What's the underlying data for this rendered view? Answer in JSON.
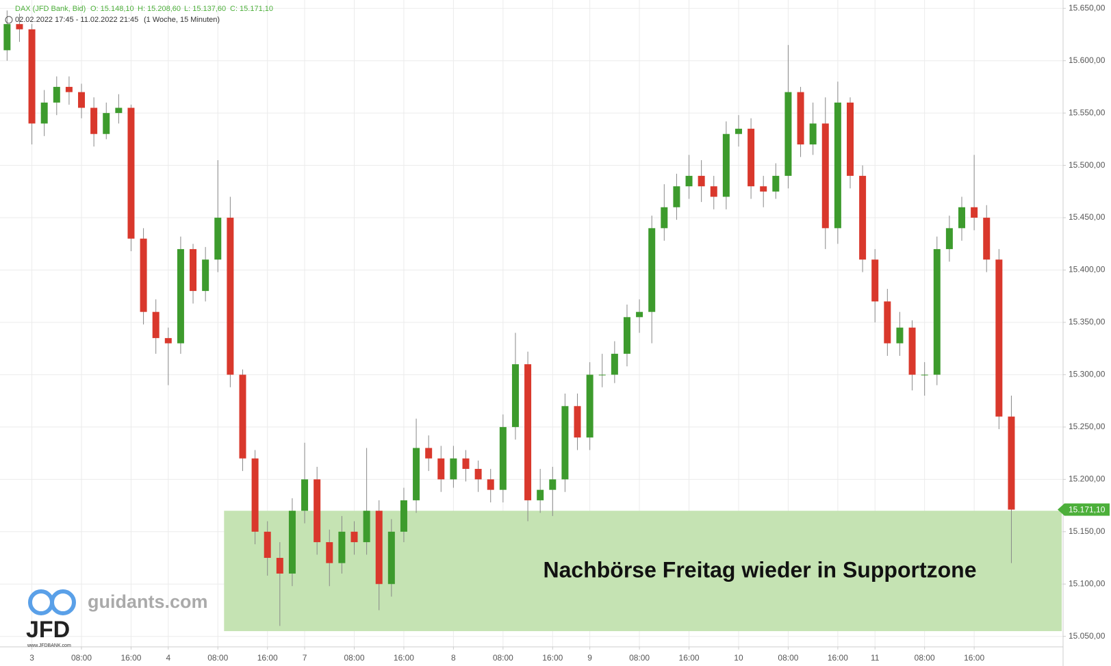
{
  "chart_data": {
    "type": "candlestick",
    "header": {
      "symbol": "DAX (JFD Bank, Bid)",
      "open": "O: 15.148,10",
      "high": "H: 15.208,60",
      "low": "L: 15.137,60",
      "close": "C: 15.171,10",
      "range": "02.02.2022 17:45 - 11.02.2022 21:45",
      "period": "(1 Woche, 15 Minuten)"
    },
    "categories": [
      null,
      null,
      "3",
      null,
      null,
      null,
      "08:00",
      null,
      null,
      null,
      "16:00",
      null,
      null,
      "4",
      null,
      null,
      null,
      "08:00",
      null,
      null,
      null,
      "16:00",
      null,
      null,
      "7",
      null,
      null,
      null,
      "08:00",
      null,
      null,
      null,
      "16:00",
      null,
      null,
      null,
      "8",
      null,
      null,
      null,
      "08:00",
      null,
      null,
      null,
      "16:00",
      null,
      null,
      "9",
      null,
      null,
      null,
      "08:00",
      null,
      null,
      null,
      "16:00",
      null,
      null,
      null,
      "10",
      null,
      null,
      null,
      "08:00",
      null,
      null,
      null,
      "16:00",
      null,
      null,
      "11",
      null,
      null,
      null,
      "08:00",
      null,
      null,
      null,
      "16:00",
      null,
      null,
      null
    ],
    "open": [
      15610,
      15635,
      15630,
      15540,
      15560,
      15575,
      15570,
      15555,
      15530,
      15550,
      15555,
      15430,
      15360,
      15335,
      15330,
      15420,
      15380,
      15410,
      15450,
      15300,
      15220,
      15150,
      15125,
      15110,
      15170,
      15200,
      15140,
      15120,
      15150,
      15140,
      15170,
      15100,
      15150,
      15180,
      15230,
      15220,
      15200,
      15220,
      15210,
      15200,
      15190,
      15250,
      15310,
      15180,
      15190,
      15200,
      15270,
      15240,
      15300,
      15300,
      15320,
      15355,
      15360,
      15440,
      15460,
      15480,
      15490,
      15480,
      15470,
      15530,
      15535,
      15480,
      15475,
      15490,
      15570,
      15520,
      15540,
      15440,
      15560,
      15490,
      15410,
      15370,
      15330,
      15345,
      15300,
      15300,
      15420,
      15440,
      15460,
      15450,
      15410,
      15260
    ],
    "high": [
      15648,
      15645,
      15635,
      15572,
      15585,
      15585,
      15578,
      15565,
      15560,
      15568,
      15558,
      15440,
      15372,
      15345,
      15432,
      15425,
      15422,
      15505,
      15470,
      15305,
      15228,
      15160,
      15140,
      15182,
      15235,
      15212,
      15152,
      15165,
      15160,
      15230,
      15180,
      15162,
      15192,
      15258,
      15242,
      15232,
      15232,
      15228,
      15218,
      15210,
      15262,
      15340,
      15322,
      15210,
      15212,
      15282,
      15282,
      15312,
      15320,
      15332,
      15367,
      15372,
      15452,
      15482,
      15492,
      15510,
      15505,
      15490,
      15542,
      15548,
      15545,
      15490,
      15502,
      15615,
      15575,
      15560,
      15565,
      15580,
      15565,
      15500,
      15420,
      15382,
      15360,
      15352,
      15312,
      15432,
      15452,
      15470,
      15510,
      15462,
      15420,
      15280
    ],
    "low": [
      15600,
      15618,
      15520,
      15528,
      15548,
      15558,
      15545,
      15518,
      15525,
      15540,
      15418,
      15348,
      15320,
      15290,
      15320,
      15368,
      15370,
      15398,
      15288,
      15208,
      15138,
      15108,
      15060,
      15098,
      15158,
      15128,
      15098,
      15110,
      15128,
      15128,
      15075,
      15088,
      15140,
      15168,
      15208,
      15188,
      15192,
      15198,
      15188,
      15178,
      15178,
      15238,
      15160,
      15168,
      15165,
      15188,
      15228,
      15228,
      15288,
      15292,
      15308,
      15340,
      15330,
      15428,
      15448,
      15468,
      15465,
      15458,
      15458,
      15518,
      15468,
      15460,
      15468,
      15478,
      15508,
      15510,
      15420,
      15425,
      15478,
      15398,
      15350,
      15318,
      15318,
      15285,
      15280,
      15290,
      15408,
      15428,
      15438,
      15398,
      15248,
      15120
    ],
    "close": [
      15635,
      15630,
      15540,
      15560,
      15575,
      15570,
      15555,
      15530,
      15550,
      15555,
      15430,
      15360,
      15335,
      15330,
      15420,
      15380,
      15410,
      15450,
      15300,
      15220,
      15150,
      15125,
      15110,
      15170,
      15200,
      15140,
      15120,
      15150,
      15140,
      15170,
      15100,
      15150,
      15180,
      15230,
      15220,
      15200,
      15220,
      15210,
      15200,
      15190,
      15250,
      15310,
      15180,
      15190,
      15200,
      15270,
      15240,
      15300,
      15300,
      15320,
      15355,
      15360,
      15440,
      15460,
      15480,
      15490,
      15480,
      15470,
      15530,
      15535,
      15480,
      15475,
      15490,
      15570,
      15520,
      15540,
      15440,
      15560,
      15490,
      15410,
      15370,
      15330,
      15345,
      15300,
      15300,
      15420,
      15440,
      15460,
      15450,
      15410,
      15260,
      15171.1
    ],
    "up_color": "#3d9b2d",
    "down_color": "#d9382c",
    "ylim": [
      15040,
      15658
    ],
    "yticks": [
      {
        "value": 15050,
        "label": "15.050,00"
      },
      {
        "value": 15100,
        "label": "15.100,00"
      },
      {
        "value": 15150,
        "label": "15.150,00"
      },
      {
        "value": 15200,
        "label": "15.200,00"
      },
      {
        "value": 15250,
        "label": "15.250,00"
      },
      {
        "value": 15300,
        "label": "15.300,00"
      },
      {
        "value": 15350,
        "label": "15.350,00"
      },
      {
        "value": 15400,
        "label": "15.400,00"
      },
      {
        "value": 15450,
        "label": "15.450,00"
      },
      {
        "value": 15500,
        "label": "15.500,00"
      },
      {
        "value": 15550,
        "label": "15.550,00"
      },
      {
        "value": 15600,
        "label": "15.600,00"
      },
      {
        "value": 15650,
        "label": "15.650,00"
      }
    ],
    "grid": true,
    "last_price": {
      "value": 15171.1,
      "label": "15.171,10"
    },
    "zone": {
      "from": 15055,
      "to": 15170,
      "color": "#c5e3b3",
      "label": "Nachbörse Freitag wieder in Supportzone"
    },
    "logo": {
      "site": "guidants.com",
      "brand": "JFD",
      "url": "www.JFDBANK.com"
    }
  }
}
